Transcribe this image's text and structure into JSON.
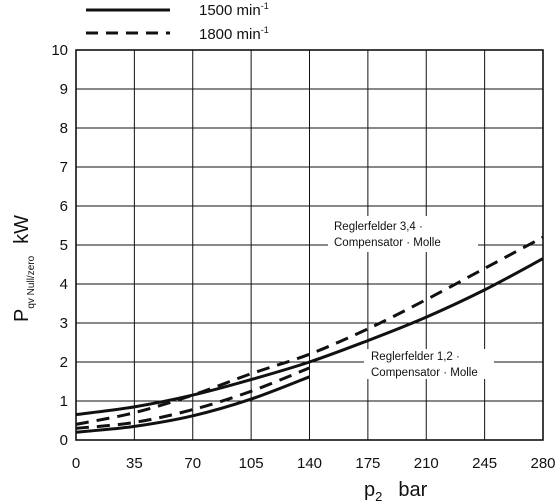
{
  "chart_data": {
    "type": "line",
    "xlabel": {
      "main": "p",
      "sub": "2",
      "unit": "bar"
    },
    "ylabel": {
      "main": "P",
      "sub": "qv Null/zero",
      "unit": "kW"
    },
    "xlim": [
      0,
      280
    ],
    "ylim": [
      0,
      10
    ],
    "xticks": [
      0,
      35,
      70,
      105,
      140,
      175,
      210,
      245,
      280
    ],
    "yticks": [
      0,
      1,
      2,
      3,
      4,
      5,
      6,
      7,
      8,
      9,
      10
    ],
    "grid": true,
    "legend": {
      "placement": "top-left",
      "entries": [
        {
          "style": "solid",
          "label": "1500 min",
          "sup": "-1"
        },
        {
          "style": "dashed",
          "label": "1800 min",
          "sup": "-1"
        }
      ]
    },
    "annotations": [
      {
        "id": "upper",
        "lines": [
          "Reglerfelder 3,4 ·",
          "Compensator · Molle"
        ]
      },
      {
        "id": "lower",
        "lines": [
          "Reglerfelder 1,2 ·",
          "Compensator · Molle"
        ]
      }
    ],
    "series": [
      {
        "style": "solid",
        "x": [
          0,
          35,
          70,
          105,
          140,
          175,
          210,
          245,
          280
        ],
        "y": [
          0.65,
          0.85,
          1.15,
          1.55,
          2.0,
          2.55,
          3.15,
          3.85,
          4.65
        ]
      },
      {
        "style": "dashed",
        "x": [
          0,
          35,
          70,
          105,
          140,
          175,
          210,
          245,
          280
        ],
        "y": [
          0.4,
          0.7,
          1.15,
          1.7,
          2.2,
          2.85,
          3.6,
          4.4,
          5.2
        ]
      },
      {
        "style": "solid",
        "x": [
          0,
          35,
          70,
          105,
          140
        ],
        "y": [
          0.2,
          0.35,
          0.62,
          1.05,
          1.62
        ]
      },
      {
        "style": "dashed",
        "x": [
          0,
          35,
          70,
          105,
          140
        ],
        "y": [
          0.3,
          0.45,
          0.78,
          1.25,
          1.85
        ]
      }
    ]
  }
}
